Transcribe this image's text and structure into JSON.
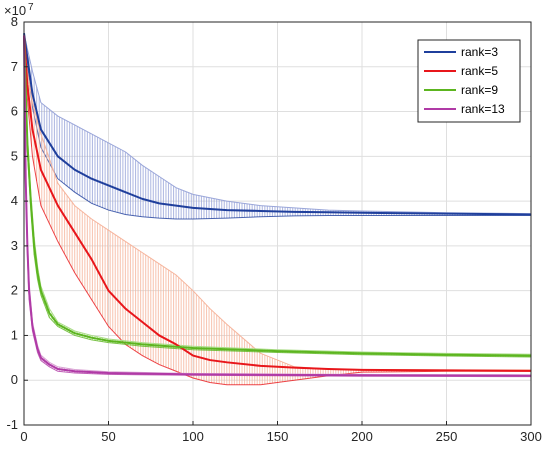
{
  "chart_data": {
    "type": "line",
    "title": "",
    "xlabel": "",
    "ylabel": "",
    "xlim": [
      0,
      300
    ],
    "ylim": [
      -1,
      8
    ],
    "y_scale_note": "×10",
    "y_scale_exponent": "7",
    "x_ticks": [
      "0",
      "50",
      "100",
      "150",
      "200",
      "250",
      "300"
    ],
    "y_ticks": [
      "-1",
      "0",
      "1",
      "2",
      "3",
      "4",
      "5",
      "6",
      "7",
      "8"
    ],
    "grid": true,
    "legend_position": "top-right",
    "series": [
      {
        "name": "rank=3",
        "color": "#1f3f9c",
        "band_color": "#9aa6d9",
        "x": [
          0,
          2,
          5,
          10,
          20,
          30,
          40,
          50,
          60,
          70,
          80,
          90,
          100,
          120,
          140,
          160,
          180,
          200,
          250,
          300
        ],
        "y": [
          7.75,
          7.2,
          6.4,
          5.6,
          5.0,
          4.7,
          4.5,
          4.35,
          4.2,
          4.05,
          3.95,
          3.9,
          3.85,
          3.8,
          3.78,
          3.76,
          3.75,
          3.74,
          3.72,
          3.7
        ],
        "upper": [
          7.75,
          7.4,
          6.9,
          6.2,
          5.9,
          5.7,
          5.5,
          5.3,
          5.1,
          4.8,
          4.55,
          4.3,
          4.15,
          4.0,
          3.9,
          3.85,
          3.8,
          3.78,
          3.74,
          3.72
        ],
        "lower": [
          7.75,
          7.0,
          6.1,
          5.2,
          4.5,
          4.2,
          3.95,
          3.8,
          3.7,
          3.65,
          3.62,
          3.6,
          3.6,
          3.62,
          3.65,
          3.67,
          3.68,
          3.68,
          3.68,
          3.68
        ]
      },
      {
        "name": "rank=5",
        "color": "#e8161b",
        "band_color": "#f6b59d",
        "x": [
          0,
          2,
          5,
          10,
          20,
          30,
          40,
          50,
          60,
          70,
          80,
          90,
          100,
          110,
          120,
          140,
          160,
          180,
          200,
          250,
          300
        ],
        "y": [
          7.7,
          6.6,
          5.6,
          4.7,
          3.9,
          3.3,
          2.7,
          2.0,
          1.6,
          1.3,
          1.0,
          0.8,
          0.55,
          0.45,
          0.4,
          0.32,
          0.28,
          0.25,
          0.23,
          0.22,
          0.21
        ],
        "upper": [
          7.7,
          6.9,
          6.2,
          5.5,
          4.4,
          3.9,
          3.6,
          3.35,
          3.1,
          2.85,
          2.6,
          2.35,
          2.0,
          1.6,
          1.25,
          0.6,
          0.3,
          0.25,
          0.24,
          0.23,
          0.23
        ],
        "lower": [
          7.7,
          6.3,
          5.0,
          3.9,
          3.1,
          2.4,
          1.8,
          1.2,
          0.8,
          0.55,
          0.35,
          0.2,
          0.05,
          -0.05,
          -0.1,
          -0.1,
          0.0,
          0.1,
          0.18,
          0.2,
          0.2
        ]
      },
      {
        "name": "rank=9",
        "color": "#5cb51f",
        "band_color": "#a9dc86",
        "x": [
          0,
          2,
          4,
          6,
          8,
          10,
          15,
          20,
          30,
          40,
          50,
          70,
          100,
          150,
          200,
          250,
          300
        ],
        "y": [
          7.7,
          5.3,
          4.0,
          3.0,
          2.4,
          2.0,
          1.5,
          1.25,
          1.05,
          0.95,
          0.88,
          0.8,
          0.72,
          0.65,
          0.6,
          0.57,
          0.55
        ],
        "upper": [
          7.7,
          5.5,
          4.2,
          3.2,
          2.55,
          2.1,
          1.6,
          1.3,
          1.1,
          1.0,
          0.92,
          0.84,
          0.76,
          0.68,
          0.63,
          0.6,
          0.58
        ],
        "lower": [
          7.7,
          5.1,
          3.8,
          2.8,
          2.25,
          1.9,
          1.4,
          1.2,
          1.0,
          0.9,
          0.84,
          0.76,
          0.68,
          0.62,
          0.57,
          0.54,
          0.52
        ]
      },
      {
        "name": "rank=13",
        "color": "#b03aa6",
        "band_color": "#d9a3d4",
        "x": [
          0,
          1,
          2,
          3,
          5,
          8,
          10,
          15,
          20,
          30,
          50,
          100,
          150,
          200,
          300
        ],
        "y": [
          7.7,
          4.5,
          3.0,
          2.0,
          1.2,
          0.7,
          0.5,
          0.35,
          0.25,
          0.2,
          0.16,
          0.13,
          0.12,
          0.11,
          0.1
        ],
        "upper": [
          7.7,
          4.7,
          3.2,
          2.2,
          1.3,
          0.78,
          0.56,
          0.4,
          0.3,
          0.24,
          0.19,
          0.15,
          0.14,
          0.13,
          0.12
        ],
        "lower": [
          7.7,
          4.3,
          2.8,
          1.8,
          1.1,
          0.62,
          0.44,
          0.3,
          0.2,
          0.16,
          0.13,
          0.11,
          0.1,
          0.09,
          0.08
        ]
      }
    ]
  }
}
